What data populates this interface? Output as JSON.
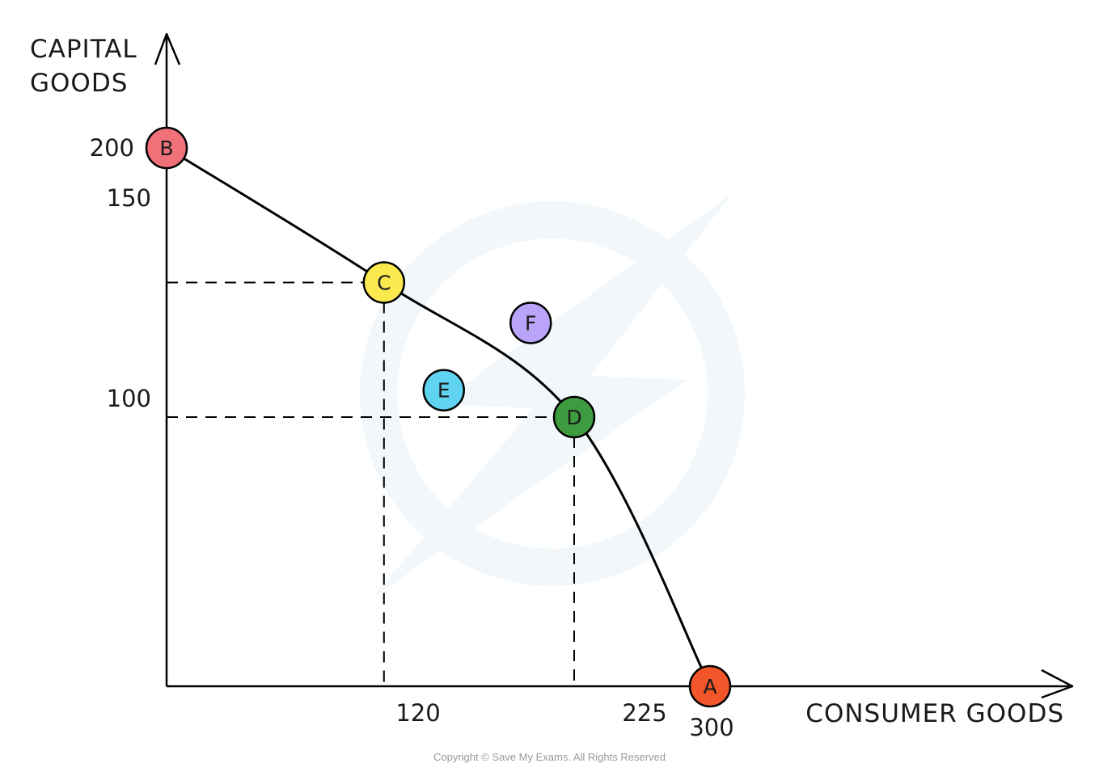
{
  "chart_data": {
    "type": "scatter",
    "title": "",
    "xlabel": "CONSUMER GOODS",
    "ylabel_lines": [
      "CAPITAL",
      "GOODS"
    ],
    "xlim": [
      0,
      300
    ],
    "ylim": [
      0,
      200
    ],
    "x_ticks": [
      120,
      225,
      300
    ],
    "y_ticks": [
      200,
      150,
      100
    ],
    "grid": false,
    "curve": {
      "name": "",
      "points": [
        [
          0,
          200
        ],
        [
          120,
          150
        ],
        [
          225,
          100
        ],
        [
          300,
          0
        ]
      ]
    },
    "guides": [
      [
        120,
        150
      ],
      [
        225,
        100
      ]
    ],
    "points": [
      {
        "label": "B",
        "x": 0,
        "y": 200,
        "color": "#f07178"
      },
      {
        "label": "C",
        "x": 120,
        "y": 150,
        "color": "#fce94f"
      },
      {
        "label": "F",
        "x": 201,
        "y": 135,
        "color": "#b9a4f9"
      },
      {
        "label": "E",
        "x": 153,
        "y": 110,
        "color": "#5fd3f0"
      },
      {
        "label": "D",
        "x": 225,
        "y": 100,
        "color": "#3f9b3f"
      },
      {
        "label": "A",
        "x": 300,
        "y": 0,
        "color": "#f2562a"
      }
    ]
  },
  "footer": {
    "copyright": "Copyright © Save My Exams. All Rights Reserved"
  }
}
